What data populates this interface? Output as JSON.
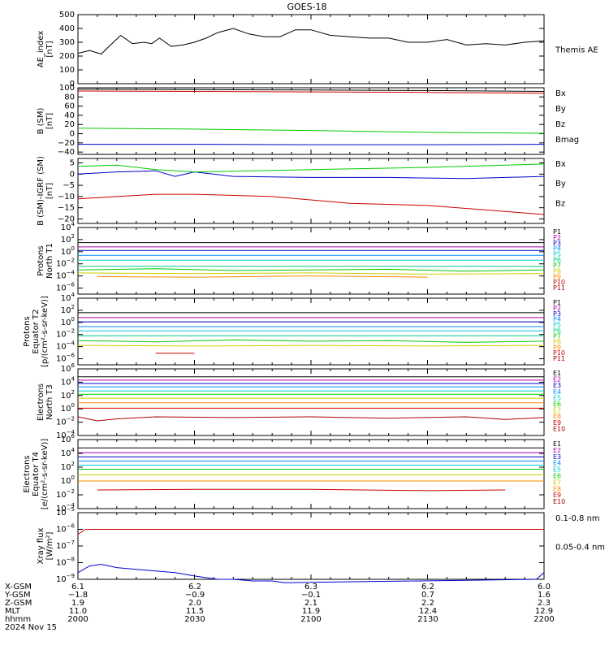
{
  "title": "GOES-18",
  "date_label": "2024 Nov 15",
  "ephemeris": {
    "rows": [
      {
        "label": "X-GSM",
        "values": [
          "6.1",
          "6.2",
          "6.3",
          "6.2",
          "6.0"
        ]
      },
      {
        "label": "Y-GSM",
        "values": [
          "-1.8",
          "-0.9",
          "-0.1",
          "0.7",
          "1.6"
        ]
      },
      {
        "label": "Z-GSM",
        "values": [
          "1.9",
          "2.0",
          "2.1",
          "2.2",
          "2.3"
        ]
      },
      {
        "label": "MLT",
        "values": [
          "11.0",
          "11.5",
          "11.9",
          "12.4",
          "12.9"
        ]
      },
      {
        "label": "hhmm",
        "values": [
          "2000",
          "2030",
          "2100",
          "2130",
          "2200"
        ]
      }
    ]
  },
  "chart_data": [
    {
      "type": "line",
      "ylabel": [
        "AE_index",
        "[nT]"
      ],
      "ylim": [
        0,
        500
      ],
      "yticks": [
        "0",
        "100",
        "200",
        "300",
        "400",
        "500"
      ],
      "series": [
        {
          "name": "Themis AE",
          "color": "#000000",
          "x": [
            0,
            3,
            6,
            8,
            11,
            14,
            17,
            19,
            21,
            24,
            27,
            30,
            33,
            36,
            40,
            44,
            48,
            52,
            56,
            60,
            65,
            70,
            75,
            80,
            85,
            90,
            95,
            100,
            105,
            110,
            115,
            120
          ],
          "values": [
            220,
            240,
            215,
            270,
            350,
            290,
            300,
            290,
            330,
            270,
            280,
            300,
            330,
            370,
            400,
            360,
            340,
            340,
            390,
            390,
            350,
            340,
            330,
            330,
            300,
            300,
            320,
            280,
            290,
            280,
            300,
            310
          ]
        }
      ]
    },
    {
      "type": "line",
      "ylabel": [
        "B (SM)",
        "[nT]"
      ],
      "ylim": [
        -45,
        100
      ],
      "yticks": [
        "-40",
        "-20",
        "0",
        "20",
        "40",
        "60",
        "80",
        "100"
      ],
      "series": [
        {
          "name": "Bx",
          "color": "#0000cc",
          "x": [
            0,
            30,
            60,
            90,
            120
          ],
          "values": [
            -23,
            -23,
            -24,
            -24,
            -23
          ]
        },
        {
          "name": "By",
          "color": "#00cc00",
          "x": [
            0,
            30,
            60,
            90,
            120
          ],
          "values": [
            12,
            10,
            7,
            3,
            1
          ]
        },
        {
          "name": "Bz",
          "color": "#cc0000",
          "x": [
            0,
            30,
            60,
            90,
            120
          ],
          "values": [
            93,
            92,
            91,
            90,
            88
          ]
        },
        {
          "name": "Bmag",
          "color": "#000000",
          "x": [
            0,
            30,
            60,
            90,
            120
          ],
          "values": [
            97,
            96,
            95,
            94,
            92
          ]
        }
      ]
    },
    {
      "type": "line",
      "ylabel": [
        "B (SM)-IGRF (SM)",
        "[nT]"
      ],
      "ylim": [
        -22,
        7
      ],
      "yticks": [
        "-20",
        "-15",
        "-10",
        "-5",
        "0",
        "5"
      ],
      "series": [
        {
          "name": "Bx",
          "color": "#0000cc",
          "x": [
            0,
            10,
            20,
            25,
            30,
            40,
            60,
            80,
            100,
            120
          ],
          "values": [
            0,
            1,
            1.5,
            -1,
            1,
            -1,
            -1.5,
            -1.5,
            -2,
            -1
          ]
        },
        {
          "name": "By",
          "color": "#00cc00",
          "x": [
            0,
            10,
            20,
            30,
            60,
            90,
            120
          ],
          "values": [
            3.5,
            4,
            2,
            1,
            2,
            3,
            4.5
          ]
        },
        {
          "name": "Bz",
          "color": "#cc0000",
          "x": [
            0,
            10,
            20,
            30,
            50,
            70,
            90,
            105,
            120
          ],
          "values": [
            -11,
            -10,
            -9,
            -9,
            -10,
            -13,
            -14,
            -16,
            -18
          ]
        }
      ]
    },
    {
      "type": "line",
      "ylabel": [
        "Protons",
        "North T1"
      ],
      "ylim_log": [
        -7,
        4
      ],
      "ytick_exponents": [
        -6,
        -4,
        -2,
        0,
        2,
        4
      ],
      "series": [
        {
          "name": "P1",
          "color": "#000000",
          "x": [
            0,
            120
          ],
          "values": [
            1.5,
            1.5
          ]
        },
        {
          "name": "P2",
          "color": "#aa00aa",
          "x": [
            0,
            120
          ],
          "values": [
            0.8,
            0.8
          ]
        },
        {
          "name": "P3",
          "color": "#0000cc",
          "x": [
            0,
            120
          ],
          "values": [
            0.2,
            0.2
          ]
        },
        {
          "name": "P4",
          "color": "#0088ff",
          "x": [
            0,
            120
          ],
          "values": [
            -0.6,
            -0.6
          ]
        },
        {
          "name": "P5",
          "color": "#00cccc",
          "x": [
            0,
            120
          ],
          "values": [
            -1.4,
            -1.4
          ]
        },
        {
          "name": "P6",
          "color": "#00cc88",
          "x": [
            0,
            120
          ],
          "values": [
            -2.4,
            -2.4
          ]
        },
        {
          "name": "P7",
          "color": "#00cc00",
          "x": [
            0,
            20,
            40,
            60,
            80,
            100,
            120
          ],
          "values": [
            -3,
            -2.8,
            -3.1,
            -3.0,
            -2.9,
            -3.2,
            -3.0
          ]
        },
        {
          "name": "P8",
          "color": "#cccc00",
          "x": [
            0,
            30,
            60,
            90,
            120
          ],
          "values": [
            -3.5,
            -3.6,
            -3.5,
            -3.7,
            -3.6
          ]
        },
        {
          "name": "P9",
          "color": "#ff8800",
          "x": [
            5,
            30,
            60,
            90
          ],
          "values": [
            -4.1,
            -4.2,
            -4.0,
            -4.2
          ]
        },
        {
          "name": "P10",
          "color": "#cc0000",
          "x": [],
          "values": []
        },
        {
          "name": "P11",
          "color": "#aa0000",
          "x": [],
          "values": []
        }
      ]
    },
    {
      "type": "line",
      "ylabel": [
        "Protons",
        "Equator T2",
        "[p/(cm²-s-sr-keV)]"
      ],
      "ylim_log": [
        -7,
        4
      ],
      "ytick_exponents": [
        -6,
        -4,
        -2,
        0,
        2,
        4
      ],
      "series": [
        {
          "name": "P1",
          "color": "#000000",
          "x": [
            0,
            120
          ],
          "values": [
            1.6,
            1.6
          ]
        },
        {
          "name": "P2",
          "color": "#aa00aa",
          "x": [
            0,
            120
          ],
          "values": [
            0.8,
            0.8
          ]
        },
        {
          "name": "P3",
          "color": "#0000cc",
          "x": [
            0,
            120
          ],
          "values": [
            0.1,
            0.1
          ]
        },
        {
          "name": "P4",
          "color": "#0088ff",
          "x": [
            0,
            120
          ],
          "values": [
            -0.7,
            -0.7
          ]
        },
        {
          "name": "P5",
          "color": "#00cccc",
          "x": [
            0,
            120
          ],
          "values": [
            -1.4,
            -1.4
          ]
        },
        {
          "name": "P6",
          "color": "#00cc88",
          "x": [
            0,
            120
          ],
          "values": [
            -2.2,
            -2.2
          ]
        },
        {
          "name": "P7",
          "color": "#00cc00",
          "x": [
            0,
            20,
            40,
            60,
            80,
            100,
            120
          ],
          "values": [
            -3.0,
            -3.2,
            -2.9,
            -3.1,
            -3.0,
            -3.3,
            -3.1
          ]
        },
        {
          "name": "P8",
          "color": "#cccc00",
          "x": [
            0,
            30,
            60,
            90,
            120
          ],
          "values": [
            -3.8,
            -3.9,
            -3.8,
            -3.9,
            -3.8
          ]
        },
        {
          "name": "P9",
          "color": "#ff8800",
          "x": [],
          "values": []
        },
        {
          "name": "P10",
          "color": "#cc0000",
          "x": [
            20,
            30
          ],
          "values": [
            -5.1,
            -5.1
          ]
        },
        {
          "name": "P11",
          "color": "#aa0000",
          "x": [],
          "values": []
        }
      ]
    },
    {
      "type": "line",
      "ylabel": [
        "Electrons",
        "North T3"
      ],
      "ylim_log": [
        -4,
        6
      ],
      "ytick_exponents": [
        -4,
        -2,
        0,
        2,
        4,
        6
      ],
      "series": [
        {
          "name": "E1",
          "color": "#000000",
          "x": [
            0,
            120
          ],
          "values": [
            4.8,
            4.8
          ]
        },
        {
          "name": "E2",
          "color": "#aa00aa",
          "x": [
            0,
            120
          ],
          "values": [
            4.3,
            4.3
          ]
        },
        {
          "name": "E3",
          "color": "#0000cc",
          "x": [
            0,
            120
          ],
          "values": [
            3.8,
            3.8
          ]
        },
        {
          "name": "E4",
          "color": "#0088ff",
          "x": [
            0,
            120
          ],
          "values": [
            3.3,
            3.3
          ]
        },
        {
          "name": "E5",
          "color": "#00cccc",
          "x": [
            0,
            120
          ],
          "values": [
            2.7,
            2.7
          ]
        },
        {
          "name": "E6",
          "color": "#00cc00",
          "x": [
            0,
            120
          ],
          "values": [
            2.2,
            2.2
          ]
        },
        {
          "name": "E7",
          "color": "#cccc00",
          "x": [
            0,
            120
          ],
          "values": [
            1.6,
            1.6
          ]
        },
        {
          "name": "E8",
          "color": "#ff8800",
          "x": [
            0,
            120
          ],
          "values": [
            0.9,
            0.9
          ]
        },
        {
          "name": "E9",
          "color": "#cc0000",
          "x": [
            0,
            120
          ],
          "values": [
            0.1,
            0.1
          ]
        },
        {
          "name": "E10",
          "color": "#aa0000",
          "x": [
            0,
            5,
            10,
            20,
            40,
            60,
            80,
            100,
            110,
            120
          ],
          "values": [
            -1.2,
            -1.8,
            -1.5,
            -1.2,
            -1.3,
            -1.2,
            -1.4,
            -1.2,
            -1.6,
            -1.3
          ]
        }
      ]
    },
    {
      "type": "line",
      "ylabel": [
        "Electrons",
        "Equator T4",
        "[e/(cm²-s-sr-keV)]"
      ],
      "ylim_log": [
        -4,
        6
      ],
      "ytick_exponents": [
        -4,
        -2,
        0,
        2,
        4,
        6
      ],
      "series": [
        {
          "name": "E1",
          "color": "#000000",
          "x": [
            0,
            120
          ],
          "values": [
            4.8,
            4.8
          ]
        },
        {
          "name": "E2",
          "color": "#aa00aa",
          "x": [
            0,
            120
          ],
          "values": [
            4.1,
            4.1
          ]
        },
        {
          "name": "E3",
          "color": "#0000cc",
          "x": [
            0,
            120
          ],
          "values": [
            3.5,
            3.5
          ]
        },
        {
          "name": "E4",
          "color": "#0088ff",
          "x": [
            0,
            120
          ],
          "values": [
            2.9,
            2.9
          ]
        },
        {
          "name": "E5",
          "color": "#00cccc",
          "x": [
            0,
            120
          ],
          "values": [
            2.3,
            2.3
          ]
        },
        {
          "name": "E6",
          "color": "#00cc00",
          "x": [
            0,
            120
          ],
          "values": [
            1.7,
            1.7
          ]
        },
        {
          "name": "E7",
          "color": "#cccc00",
          "x": [
            0,
            120
          ],
          "values": [
            0.9,
            0.9
          ]
        },
        {
          "name": "E8",
          "color": "#ff8800",
          "x": [
            0,
            120
          ],
          "values": [
            0.0,
            0.0
          ]
        },
        {
          "name": "E9",
          "color": "#cc0000",
          "x": [
            5,
            30,
            60,
            90,
            110
          ],
          "values": [
            -1.3,
            -1.2,
            -1.2,
            -1.4,
            -1.3
          ]
        },
        {
          "name": "E10",
          "color": "#aa0000",
          "x": [],
          "values": []
        }
      ]
    },
    {
      "type": "line",
      "ylabel": [
        "Xray flux",
        "[W/m²]"
      ],
      "ylim_log": [
        -9,
        -5
      ],
      "ytick_exponents": [
        -9,
        -8,
        -7,
        -6,
        -5
      ],
      "series": [
        {
          "name": "0.1-0.8 nm",
          "color": "#cc0000",
          "x": [
            0,
            2,
            120
          ],
          "values": [
            -6.3,
            -6.0,
            -6.0
          ]
        },
        {
          "name": "0.05-0.4 nm",
          "color": "#0000cc",
          "x": [
            0,
            3,
            6,
            10,
            15,
            20,
            25,
            30,
            33,
            36,
            40,
            45,
            50,
            53,
            55,
            118,
            120
          ],
          "values": [
            -8.6,
            -8.2,
            -8.1,
            -8.3,
            -8.4,
            -8.5,
            -8.6,
            -8.8,
            -8.9,
            -9.0,
            -9.0,
            -9.1,
            -9.1,
            -9.2,
            -9.2,
            -9.0,
            -8.6
          ]
        }
      ]
    }
  ]
}
